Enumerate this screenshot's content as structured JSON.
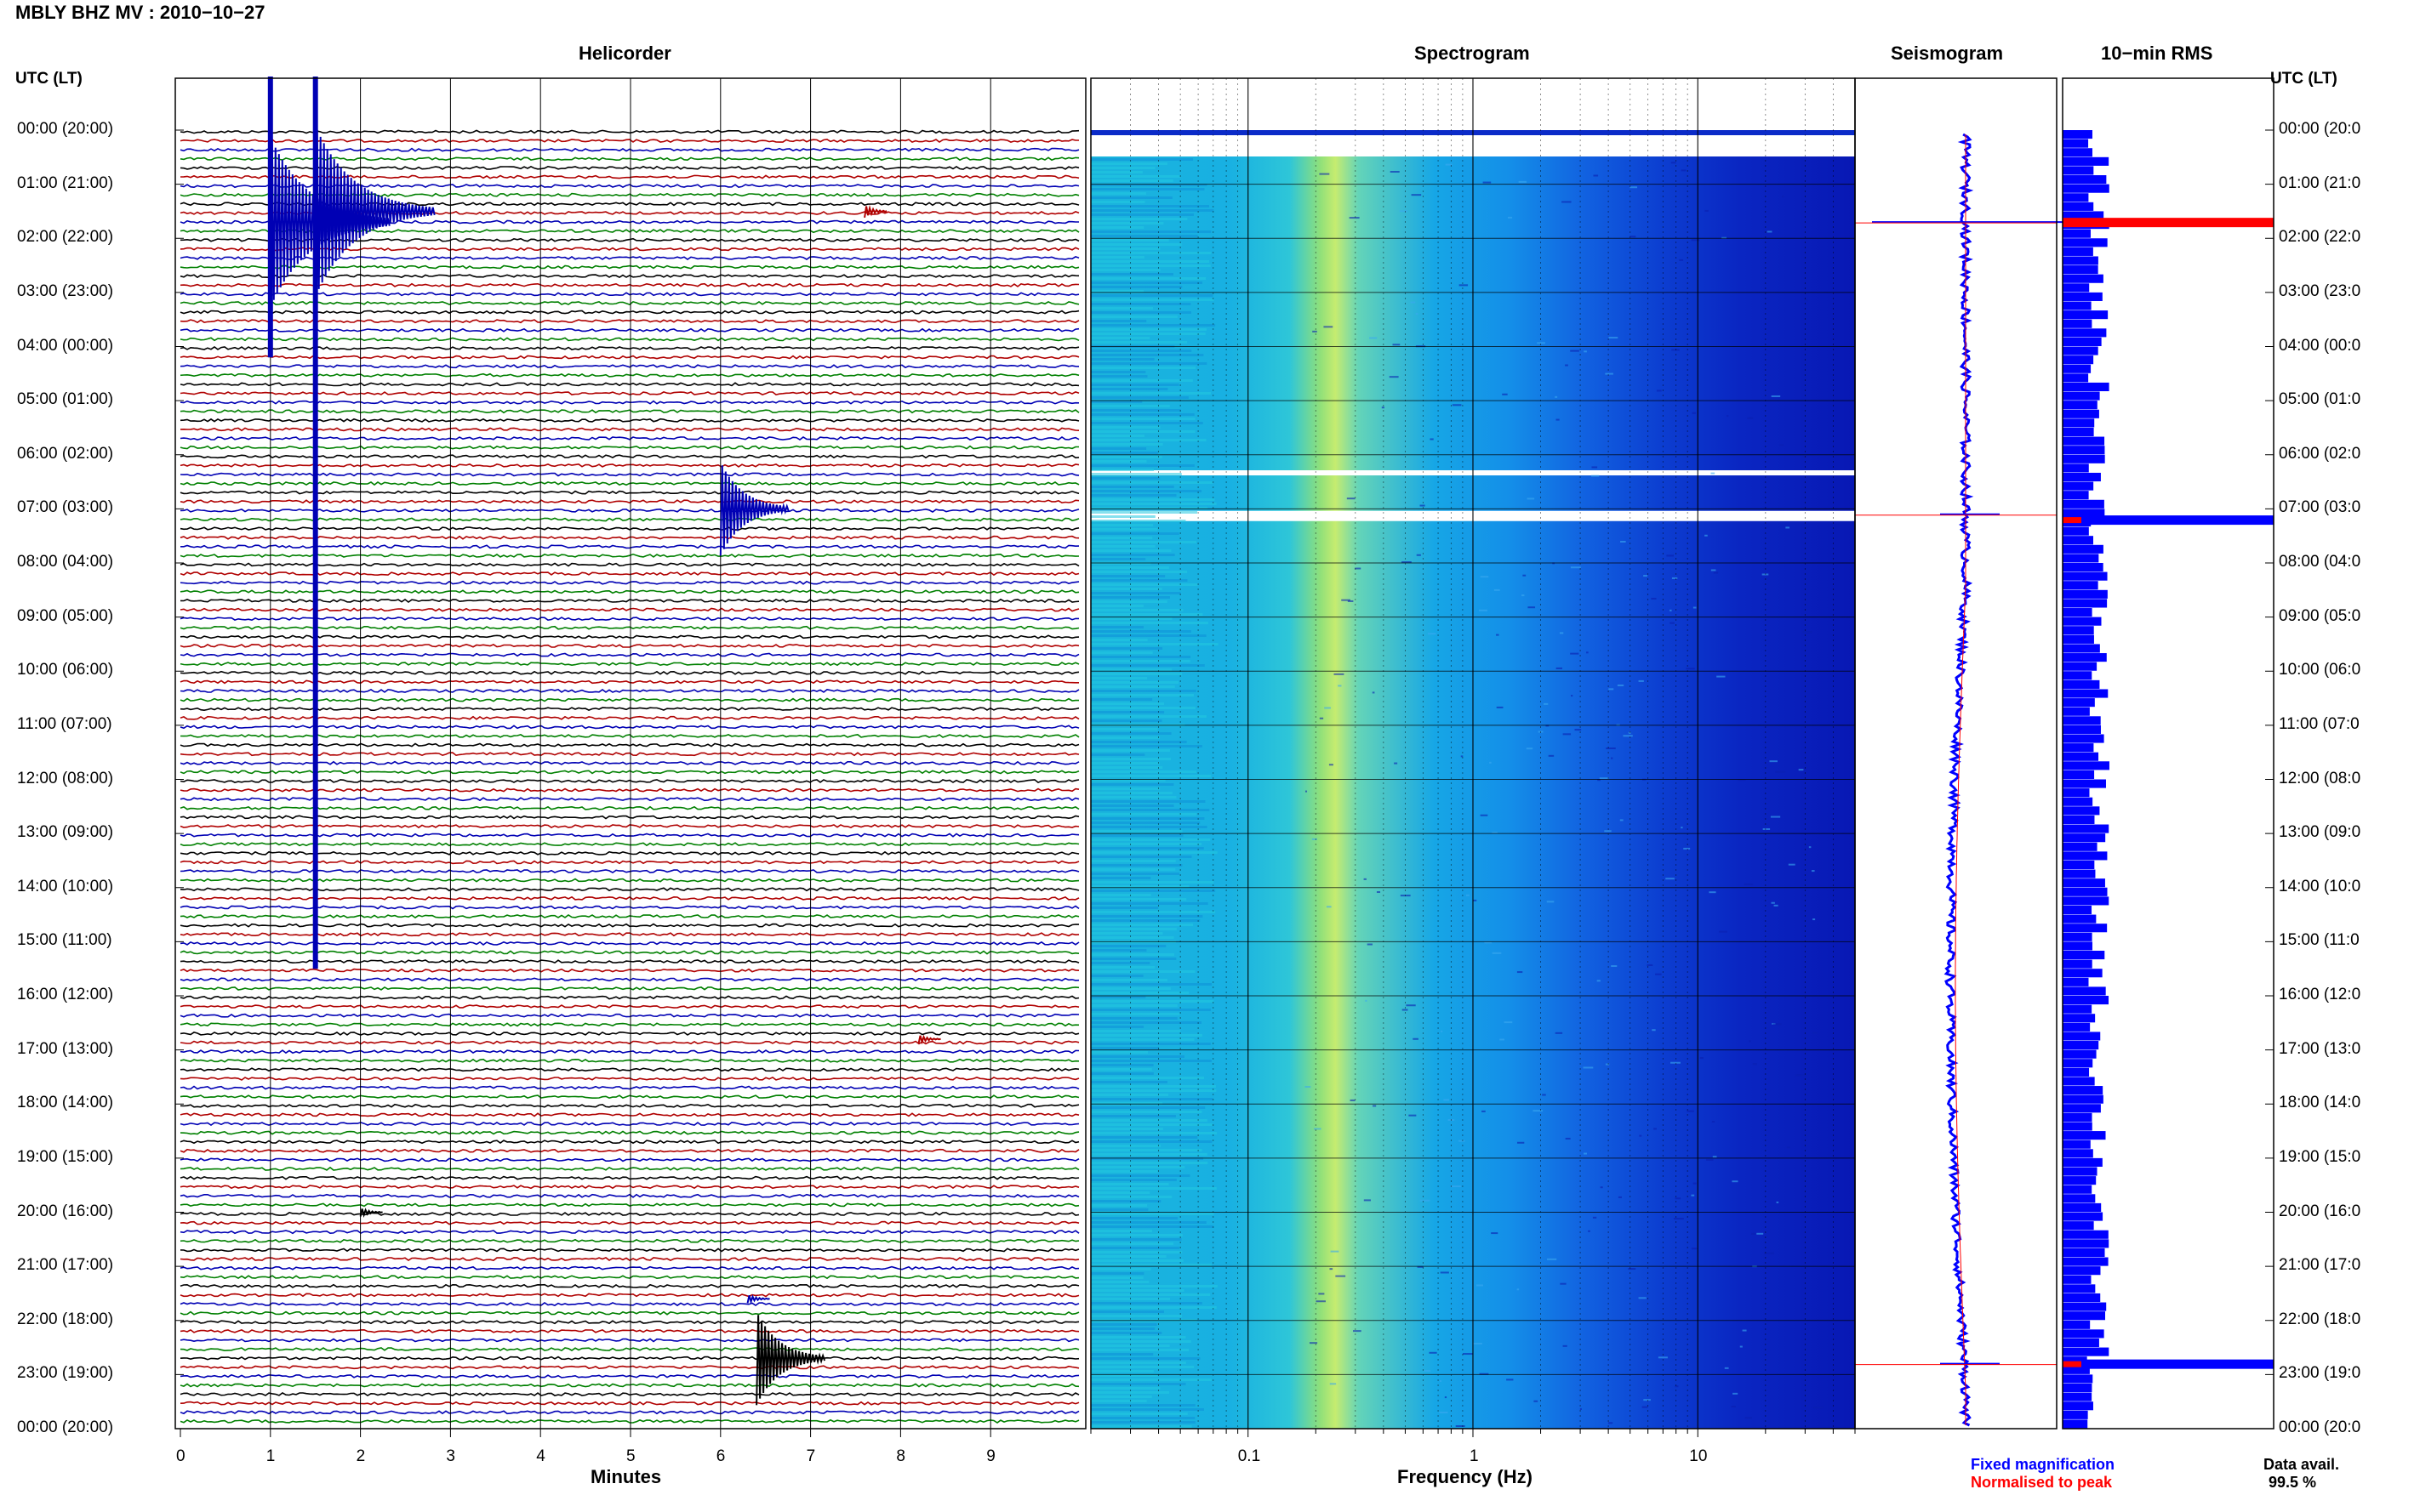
{
  "title": "MBLY BHZ MV : 2010−10−27",
  "panels": {
    "helicorder": "Helicorder",
    "spectrogram": "Spectrogram",
    "seismogram": "Seismogram",
    "rms": "10−min RMS"
  },
  "left_header": "UTC (LT)",
  "right_header": "UTC (LT)",
  "time_labels": [
    "00:00 (20:00)",
    "01:00 (21:00)",
    "02:00 (22:00)",
    "03:00 (23:00)",
    "04:00 (00:00)",
    "05:00 (01:00)",
    "06:00 (02:00)",
    "07:00 (03:00)",
    "08:00 (04:00)",
    "09:00 (05:00)",
    "10:00 (06:00)",
    "11:00 (07:00)",
    "12:00 (08:00)",
    "13:00 (09:00)",
    "14:00 (10:00)",
    "15:00 (11:00)",
    "16:00 (12:00)",
    "17:00 (13:00)",
    "18:00 (14:00)",
    "19:00 (15:00)",
    "20:00 (16:00)",
    "21:00 (17:00)",
    "22:00 (18:00)",
    "23:00 (19:00)",
    "00:00 (20:00)"
  ],
  "right_time_labels": [
    "00:00 (20:0",
    "01:00 (21:0",
    "02:00 (22:0",
    "03:00 (23:0",
    "04:00 (00:0",
    "05:00 (01:0",
    "06:00 (02:0",
    "07:00 (03:0",
    "08:00 (04:0",
    "09:00 (05:0",
    "10:00 (06:0",
    "11:00 (07:0",
    "12:00 (08:0",
    "13:00 (09:0",
    "14:00 (10:0",
    "15:00 (11:0",
    "16:00 (12:0",
    "17:00 (13:0",
    "18:00 (14:0",
    "19:00 (15:0",
    "20:00 (16:0",
    "21:00 (17:0",
    "22:00 (18:0",
    "23:00 (19:0",
    "00:00 (20:0"
  ],
  "minute_ticks": [
    "0",
    "1",
    "2",
    "3",
    "4",
    "5",
    "6",
    "7",
    "8",
    "9"
  ],
  "minutes_label": "Minutes",
  "freq_ticks": [
    "0.1",
    "1",
    "10"
  ],
  "freq_label": "Frequency (Hz)",
  "legend": {
    "fixed": "Fixed magnification",
    "normalised": "Normalised to peak"
  },
  "data_avail_label": "Data avail.",
  "data_avail_value": "99.5 %",
  "colors": {
    "trace_cycle": [
      "#000000",
      "#b00000",
      "#0000b4",
      "#008000"
    ],
    "fixed_magnification": "#0000ff",
    "normalised": "#ff0000",
    "spectrogram_low": "#10b8e0",
    "spectrogram_peak": "#a8e86a",
    "spectrogram_high": "#0a1fb8"
  },
  "chart_data": [
    {
      "type": "line",
      "name": "Helicorder",
      "xlabel": "Minutes",
      "xlim": [
        0,
        10
      ],
      "rows_per_hour": 6,
      "events": [
        {
          "hour": 1.7,
          "minute": 1.0,
          "amplitude": 10,
          "spans_hours": [
            0,
            4.2
          ]
        },
        {
          "hour": 1.5,
          "minute": 1.5,
          "amplitude": 10,
          "spans_hours": [
            0,
            15.5
          ]
        },
        {
          "hour": 1.5,
          "minute": 7.6,
          "amplitude": 1.5
        },
        {
          "hour": 7.0,
          "minute": 6.0,
          "amplitude": 5
        },
        {
          "hour": 22.7,
          "minute": 6.4,
          "amplitude": 5
        },
        {
          "hour": 16.8,
          "minute": 8.2,
          "amplitude": 1
        },
        {
          "hour": 20.0,
          "minute": 2.0,
          "amplitude": 1
        },
        {
          "hour": 21.6,
          "minute": 6.3,
          "amplitude": 1
        }
      ]
    },
    {
      "type": "heatmap",
      "name": "Spectrogram",
      "xlabel": "Frequency (Hz)",
      "xscale": "log",
      "xlim": [
        0.02,
        50
      ],
      "peak_frequency_hz": 0.25,
      "gaps_hours": [
        6.35,
        7.1
      ]
    },
    {
      "type": "line",
      "name": "Seismogram",
      "series": [
        "Fixed magnification",
        "Normalised to peak"
      ],
      "spikes_hours": [
        1.7,
        7.1,
        22.8
      ]
    },
    {
      "type": "bar",
      "name": "10-min RMS",
      "peaks_hours": [
        1.7,
        7.2,
        22.8
      ]
    }
  ]
}
